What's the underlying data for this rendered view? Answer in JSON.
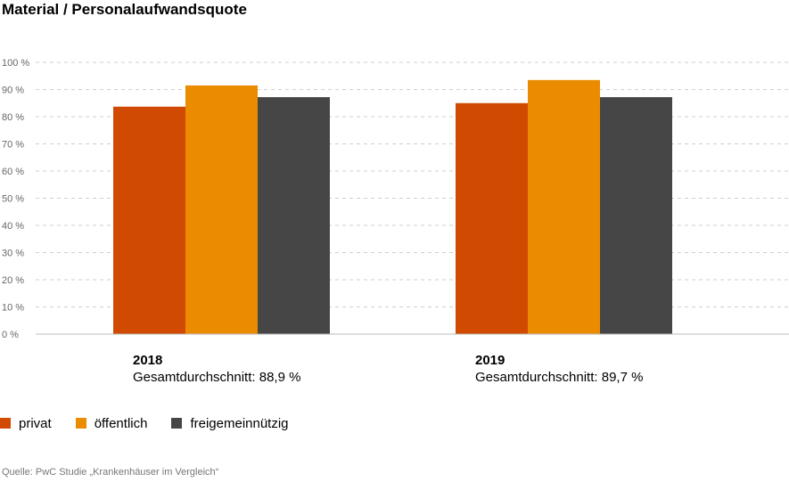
{
  "chart_data": {
    "type": "bar",
    "title": "Material / Personalaufwandsquote",
    "categories": [
      "2018",
      "2019"
    ],
    "category_notes": [
      "Gesamtdurchschnitt: 88,9 %",
      "Gesamtdurchschnitt: 89,7 %"
    ],
    "series": [
      {
        "name": "privat",
        "color": "#d04a02",
        "values": [
          83.7,
          85.0
        ]
      },
      {
        "name": "öffentlich",
        "color": "#eb8c00",
        "values": [
          91.5,
          93.5
        ]
      },
      {
        "name": "freigemeinnützig",
        "color": "#464646",
        "values": [
          87.2,
          87.2
        ]
      }
    ],
    "ylim": [
      0,
      100
    ],
    "yticks": [
      0,
      10,
      20,
      30,
      40,
      50,
      60,
      70,
      80,
      90,
      100
    ],
    "ytick_labels": [
      "0 %",
      "10 %",
      "20 %",
      "30 %",
      "40 %",
      "50 %",
      "60 %",
      "70 %",
      "80 %",
      "90 %",
      "100 %"
    ],
    "grid": true,
    "legend_position": "bottom-left",
    "xlabel": "",
    "ylabel": ""
  },
  "source": "Quelle: PwC Studie „Krankenhäuser im Vergleich“"
}
